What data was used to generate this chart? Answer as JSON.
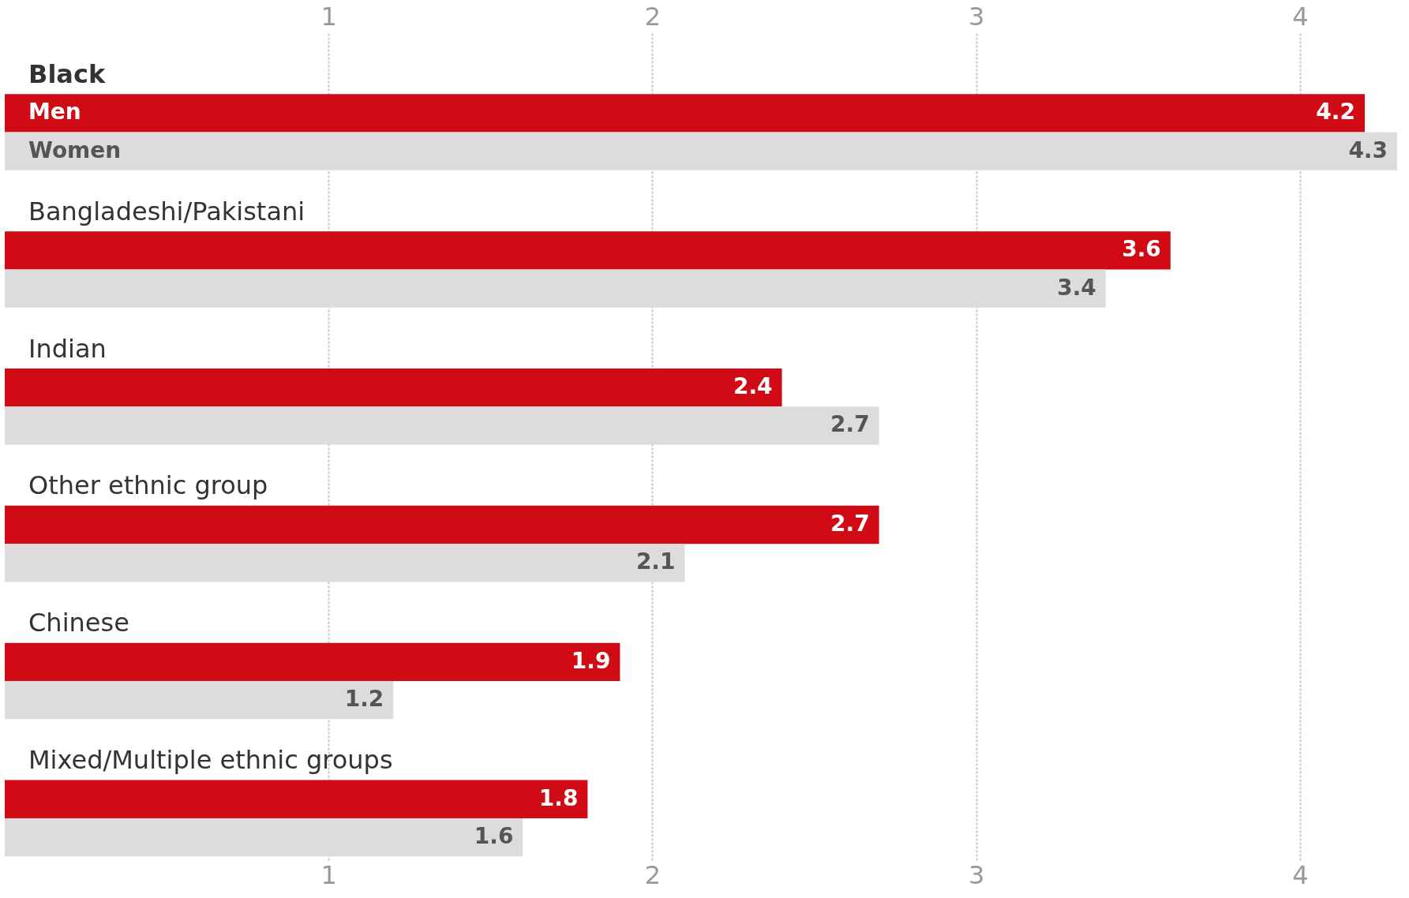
{
  "chart_data": {
    "type": "bar",
    "orientation": "horizontal",
    "categories": [
      "Black",
      "Bangladeshi/Pakistani",
      "Indian",
      "Other ethnic group",
      "Chinese",
      "Mixed/Multiple ethnic groups"
    ],
    "series": [
      {
        "name": "Men",
        "color": "#d10b16",
        "values": [
          4.2,
          3.6,
          2.4,
          2.7,
          1.9,
          1.8
        ]
      },
      {
        "name": "Women",
        "color": "#dcdcdc",
        "values": [
          4.3,
          3.4,
          2.7,
          2.1,
          1.2,
          1.6
        ]
      }
    ],
    "xlim": [
      0,
      4.3
    ],
    "xticks": [
      1,
      2,
      3,
      4
    ],
    "x2lim": [
      0,
      4.3
    ],
    "x2ticks": [
      1,
      2,
      3,
      4
    ],
    "grid": "x",
    "data_labels": true
  }
}
